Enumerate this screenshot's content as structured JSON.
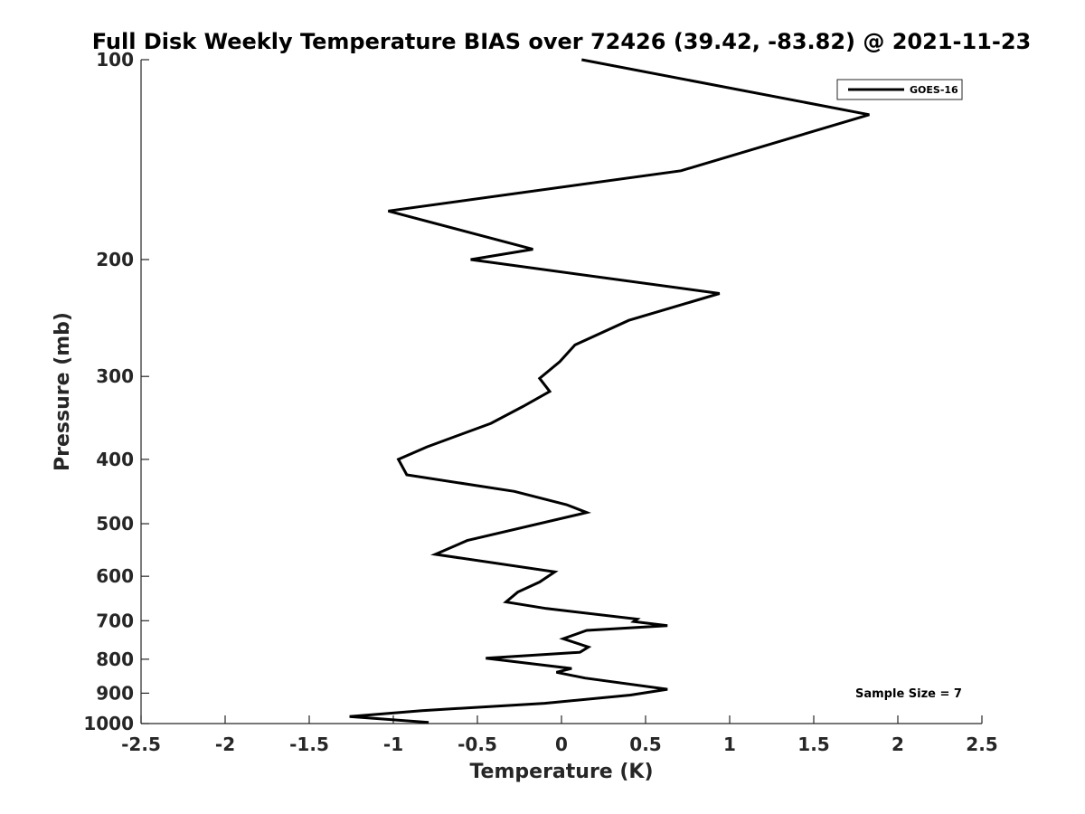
{
  "chart_data": {
    "type": "line",
    "title": "Full Disk Weekly Temperature BIAS over 72426 (39.42, -83.82) @ 2021-11-23",
    "xlabel": "Temperature (K)",
    "ylabel": "Pressure (mb)",
    "xlim": [
      -2.5,
      2.5
    ],
    "ylim": [
      100,
      1000
    ],
    "y_scale": "log",
    "y_reversed": true,
    "xticks": [
      -2.5,
      -2,
      -1.5,
      -1,
      -0.5,
      0,
      0.5,
      1,
      1.5,
      2,
      2.5
    ],
    "xtick_labels": [
      "-2.5",
      "-2",
      "-1.5",
      "-1",
      "-0.5",
      "0",
      "0.5",
      "1",
      "1.5",
      "2",
      "2.5"
    ],
    "yticks": [
      100,
      200,
      300,
      400,
      500,
      600,
      700,
      800,
      900,
      1000
    ],
    "ytick_labels": [
      "100",
      "200",
      "300",
      "400",
      "500",
      "600",
      "700",
      "800",
      "900",
      "1000"
    ],
    "grid": false,
    "legend": "top-right",
    "annotation": "Sample Size = 7",
    "series": [
      {
        "name": "GOES-16",
        "color": "#000000",
        "x": [
          0.12,
          1.83,
          0.71,
          -1.03,
          -0.17,
          -0.54,
          0.94,
          0.4,
          0.08,
          -0.01,
          -0.13,
          -0.07,
          -0.23,
          -0.42,
          -0.8,
          -0.97,
          -0.92,
          -0.28,
          0.03,
          0.15,
          -0.56,
          -0.75,
          -0.04,
          -0.13,
          -0.26,
          -0.33,
          -0.09,
          0.45,
          0.43,
          0.63,
          0.15,
          0.01,
          0.16,
          0.11,
          -0.45,
          0.06,
          -0.03,
          0.14,
          0.63,
          0.41,
          -0.1,
          -0.83,
          -1.26,
          -0.79
        ],
        "y": [
          100,
          121,
          147,
          169,
          193,
          200,
          225,
          247,
          269,
          285,
          302,
          316,
          333,
          353,
          383,
          400,
          422,
          447,
          468,
          481,
          530,
          556,
          591,
          612,
          634,
          656,
          671,
          696,
          702,
          712,
          724,
          745,
          767,
          781,
          797,
          826,
          837,
          854,
          888,
          906,
          932,
          956,
          976,
          996
        ]
      }
    ]
  }
}
